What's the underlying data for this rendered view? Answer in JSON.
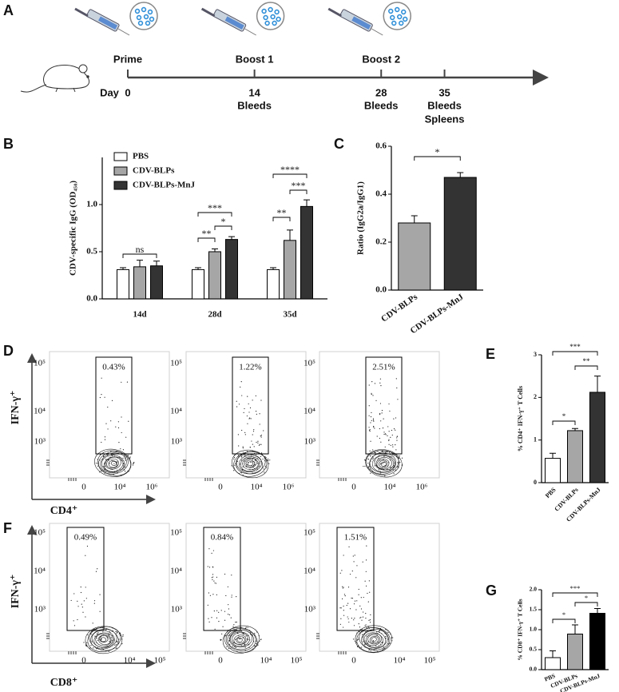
{
  "timeline": {
    "panel": "A",
    "day_label": "Day",
    "events": [
      {
        "day": 0,
        "label": "Prime"
      },
      {
        "day": 14,
        "label": "Boost 1",
        "samples": [
          "Bleeds"
        ]
      },
      {
        "day": 28,
        "label": "Boost 2",
        "samples": [
          "Bleeds"
        ]
      },
      {
        "day": 35,
        "samples": [
          "Bleeds",
          "Spleens"
        ]
      }
    ]
  },
  "chart_data": [
    {
      "panel": "B",
      "type": "bar",
      "y_label": "CDV-specific IgG (OD₄₅₀)",
      "categories": [
        "14d",
        "28d",
        "35d"
      ],
      "series": [
        {
          "name": "PBS",
          "color": "#ffffff",
          "values": [
            0.31,
            0.31,
            0.31
          ],
          "errors": [
            0.02,
            0.02,
            0.02
          ]
        },
        {
          "name": "CDV-BLPs",
          "color": "#a6a6a6",
          "values": [
            0.34,
            0.5,
            0.62
          ],
          "errors": [
            0.07,
            0.03,
            0.11
          ]
        },
        {
          "name": "CDV-BLPs-MnJ",
          "color": "#333333",
          "values": [
            0.35,
            0.63,
            0.98
          ],
          "errors": [
            0.05,
            0.03,
            0.07
          ]
        }
      ],
      "ylim": [
        0,
        1.5
      ],
      "yticks": [
        {
          "value": 0,
          "label": "0.0"
        },
        0.5,
        {
          "value": 1,
          "label": "1.0"
        }
      ],
      "annotations": [
        "ns",
        "**",
        "*",
        "***",
        "**",
        "***",
        "****"
      ]
    },
    {
      "panel": "C",
      "type": "bar",
      "y_label": "Ratio (IgG2a/IgG1)",
      "categories": [
        "CDV-BLPs",
        "CDV-BLPs-MnJ"
      ],
      "values": [
        0.28,
        0.47
      ],
      "errors": [
        0.03,
        0.02
      ],
      "colors": [
        "#a6a6a6",
        "#333333"
      ],
      "ylim": [
        0,
        0.6
      ],
      "yticks": [
        {
          "value": 0,
          "label": "0.0"
        },
        0.2,
        0.4,
        0.6
      ],
      "annotations": [
        "*"
      ]
    },
    {
      "panel": "E",
      "type": "bar",
      "y_label": "% CD4⁺ IFN-γ⁺ T Cells",
      "categories": [
        "PBS",
        "CDV-BLPs",
        "CDV-BLPs-MnJ"
      ],
      "values": [
        0.57,
        1.22,
        2.12
      ],
      "errors": [
        0.12,
        0.05,
        0.38
      ],
      "colors": [
        "#ffffff",
        "#a6a6a6",
        "#333333"
      ],
      "ylim": [
        0,
        3
      ],
      "yticks": [
        0,
        1,
        2,
        3
      ],
      "annotations": [
        "*",
        "***",
        "**"
      ]
    },
    {
      "panel": "G",
      "type": "bar",
      "y_label": "% CD8⁺ IFN-γ⁺ T Cells",
      "categories": [
        "PBS",
        "CDV-BLPs",
        "CDV-BLPs-MnJ"
      ],
      "values": [
        0.3,
        0.89,
        1.41
      ],
      "errors": [
        0.17,
        0.23,
        0.12
      ],
      "colors": [
        "#ffffff",
        "#a6a6a6",
        "#000000"
      ],
      "ylim": [
        0,
        2
      ],
      "yticks": [
        {
          "value": 0,
          "label": "0.0"
        },
        0.5,
        {
          "value": 1,
          "label": "1.0"
        },
        1.5,
        {
          "value": 2,
          "label": "2.0"
        }
      ],
      "annotations": [
        "*",
        "***",
        "*"
      ]
    }
  ],
  "flow_plots": [
    {
      "panel": "D",
      "x_label": "CD4⁺",
      "y_label": "IFN-γ⁺",
      "xticks": [
        "0",
        "10⁴",
        "10⁶"
      ],
      "yticks": [
        "10⁵",
        "10⁴",
        "10³"
      ],
      "gates": [
        "0.43%",
        "1.22%",
        "2.51%"
      ]
    },
    {
      "panel": "F",
      "x_label": "CD8⁺",
      "y_label": "IFN-γ⁺",
      "xticks": [
        "0",
        "10⁴",
        "10⁵"
      ],
      "yticks": [
        "10⁵",
        "10⁴",
        "10³"
      ],
      "gates": [
        "0.49%",
        "0.84%",
        "1.51%"
      ]
    }
  ]
}
